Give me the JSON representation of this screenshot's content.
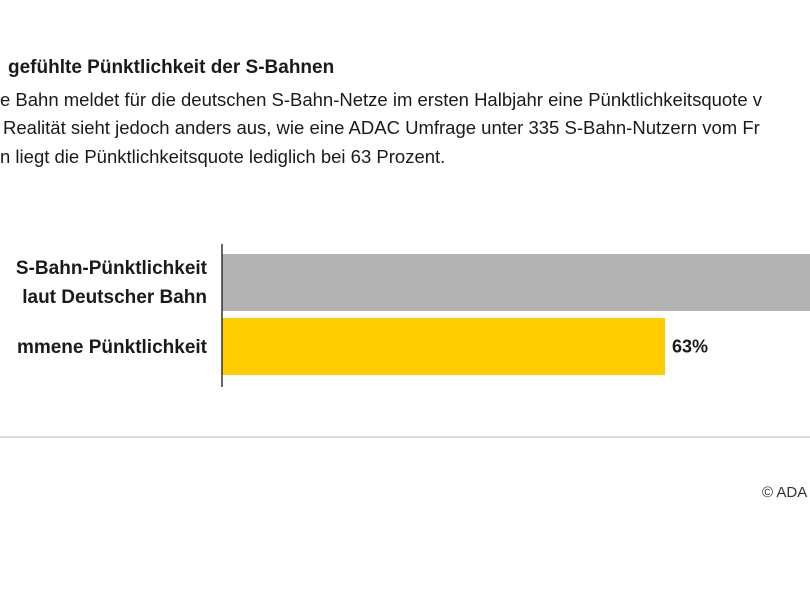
{
  "chart_data": {
    "type": "bar",
    "orientation": "horizontal",
    "title": "gefühlte Pünktlichkeit der S-Bahnen",
    "subtitle_lines": [
      "e Bahn meldet für die deutschen S-Bahn-Netze im ersten Halbjahr eine Pünktlichkeitsquote v",
      "Realität sieht jedoch anders aus, wie eine ADAC Umfrage unter 335 S-Bahn-Nutzern vom Fr",
      "n liegt die Pünktlichkeitsquote lediglich bei 63 Prozent."
    ],
    "categories": [
      [
        "S-Bahn-Pünktlichkeit",
        "laut Deutscher Bahn"
      ],
      [
        "mmene Pünktlichkeit"
      ]
    ],
    "values": [
      null,
      63
    ],
    "data_labels": [
      "",
      "63%"
    ],
    "unit": "%",
    "bar_colors": [
      "#b3b3b3",
      "#ffcc00"
    ],
    "axis_color": "#333333",
    "baseline_color": "#d9d9d9",
    "grid": false,
    "legend": "none"
  },
  "footer": {
    "copyright": "© ADA"
  }
}
